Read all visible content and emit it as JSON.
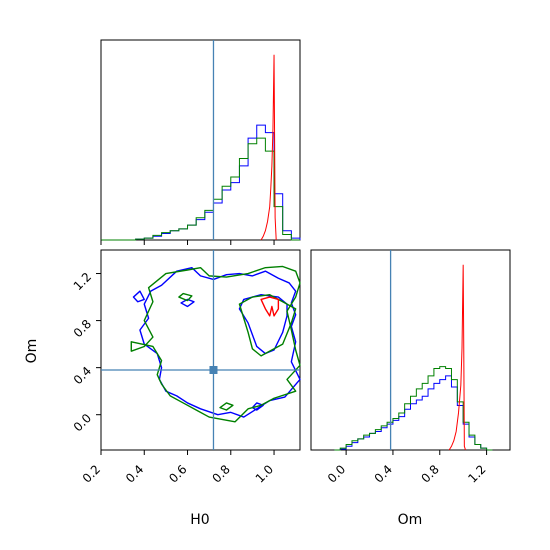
{
  "chart_data": {
    "type": "corner",
    "parameters": [
      "H0",
      "Om"
    ],
    "truth": {
      "H0": 0.72,
      "Om": 0.38
    },
    "truth_color": "#4682b4",
    "colors": {
      "blue": "#0000ff",
      "green": "#008000",
      "red": "#ff0000"
    },
    "axes": {
      "H0": {
        "range": [
          0.2,
          1.12
        ],
        "ticks": [
          0.2,
          0.4,
          0.6,
          0.8,
          1.0
        ],
        "tick_labels": [
          "0.2",
          "0.4",
          "0.6",
          "0.8",
          "1.0"
        ],
        "label": "H0"
      },
      "Om": {
        "range": [
          -0.3,
          1.4
        ],
        "ticks": [
          0.0,
          0.4,
          0.8,
          1.2
        ],
        "tick_labels": [
          "0.0",
          "0.4",
          "0.8",
          "1.2"
        ],
        "label": "Om"
      }
    },
    "histograms": {
      "H0": {
        "edges": [
          0.2,
          0.24,
          0.28,
          0.32,
          0.36,
          0.4,
          0.44,
          0.48,
          0.52,
          0.56,
          0.6,
          0.64,
          0.68,
          0.72,
          0.76,
          0.8,
          0.84,
          0.88,
          0.92,
          0.96,
          1.0,
          1.04,
          1.08,
          1.12
        ],
        "series": [
          {
            "color": "blue",
            "counts": [
              0,
              0,
              0,
              0,
              0.005,
              0.01,
              0.02,
              0.035,
              0.05,
              0.06,
              0.08,
              0.11,
              0.15,
              0.2,
              0.27,
              0.31,
              0.4,
              0.55,
              0.62,
              0.58,
              0.25,
              0.05,
              0.01
            ]
          },
          {
            "color": "green",
            "counts": [
              0,
              0,
              0,
              0,
              0.005,
              0.01,
              0.025,
              0.04,
              0.05,
              0.06,
              0.08,
              0.12,
              0.16,
              0.22,
              0.29,
              0.34,
              0.44,
              0.52,
              0.55,
              0.48,
              0.18,
              0.03,
              0
            ]
          }
        ],
        "peak": {
          "color": "red",
          "x": [
            0.94,
            0.95,
            0.96,
            0.97,
            0.98,
            0.985,
            0.99,
            0.995,
            1.0,
            1.005,
            1.01
          ],
          "y": [
            0.0,
            0.02,
            0.05,
            0.1,
            0.18,
            0.28,
            0.4,
            0.6,
            1.0,
            0.12,
            0.0
          ]
        },
        "ymax": 1.08
      },
      "Om": {
        "edges": [
          -0.1,
          -0.05,
          0.0,
          0.05,
          0.1,
          0.15,
          0.2,
          0.25,
          0.3,
          0.35,
          0.4,
          0.45,
          0.5,
          0.55,
          0.6,
          0.65,
          0.7,
          0.75,
          0.8,
          0.85,
          0.9,
          0.95,
          1.0,
          1.05,
          1.1,
          1.15,
          1.2,
          1.25
        ],
        "series": [
          {
            "color": "blue",
            "counts": [
              0,
              0.005,
              0.02,
              0.04,
              0.06,
              0.07,
              0.09,
              0.1,
              0.12,
              0.14,
              0.16,
              0.18,
              0.22,
              0.25,
              0.27,
              0.29,
              0.33,
              0.36,
              0.38,
              0.4,
              0.34,
              0.24,
              0.14,
              0.07,
              0.03,
              0.01,
              0
            ]
          },
          {
            "color": "green",
            "counts": [
              0,
              0.01,
              0.03,
              0.05,
              0.06,
              0.08,
              0.09,
              0.11,
              0.13,
              0.15,
              0.17,
              0.2,
              0.25,
              0.29,
              0.33,
              0.36,
              0.4,
              0.44,
              0.45,
              0.44,
              0.38,
              0.26,
              0.15,
              0.08,
              0.03,
              0.01,
              0
            ]
          }
        ],
        "peak": {
          "color": "red",
          "x": [
            0.88,
            0.9,
            0.92,
            0.94,
            0.96,
            0.98,
            0.99,
            1.0,
            1.005,
            1.01,
            1.02
          ],
          "y": [
            0.0,
            0.02,
            0.05,
            0.1,
            0.2,
            0.35,
            0.55,
            1.0,
            0.55,
            0.02,
            0.0
          ]
        },
        "ymax": 1.08
      }
    },
    "contours": [
      {
        "color": "blue",
        "paths": [
          [
            [
              0.43,
              1.05
            ],
            [
              0.48,
              1.1
            ],
            [
              0.55,
              1.22
            ],
            [
              0.62,
              1.25
            ],
            [
              0.66,
              1.18
            ],
            [
              0.72,
              1.15
            ],
            [
              0.78,
              1.19
            ],
            [
              0.84,
              1.2
            ],
            [
              0.9,
              1.18
            ],
            [
              0.96,
              1.22
            ],
            [
              1.02,
              1.16
            ],
            [
              1.07,
              1.12
            ],
            [
              1.1,
              1.05
            ],
            [
              1.08,
              0.95
            ],
            [
              1.1,
              0.85
            ],
            [
              1.08,
              0.75
            ],
            [
              1.1,
              0.62
            ],
            [
              1.08,
              0.45
            ],
            [
              1.12,
              0.3
            ],
            [
              1.05,
              0.15
            ],
            [
              0.98,
              0.12
            ],
            [
              0.92,
              0.05
            ],
            [
              0.86,
              -0.02
            ],
            [
              0.8,
              0.02
            ],
            [
              0.74,
              0.0
            ],
            [
              0.66,
              0.05
            ],
            [
              0.6,
              0.1
            ],
            [
              0.55,
              0.16
            ],
            [
              0.5,
              0.2
            ],
            [
              0.47,
              0.3
            ],
            [
              0.48,
              0.4
            ],
            [
              0.46,
              0.52
            ],
            [
              0.4,
              0.6
            ],
            [
              0.38,
              0.72
            ],
            [
              0.42,
              0.82
            ],
            [
              0.4,
              0.94
            ],
            [
              0.43,
              1.05
            ]
          ],
          [
            [
              0.86,
              0.98
            ],
            [
              0.94,
              1.02
            ],
            [
              1.02,
              1.0
            ],
            [
              1.06,
              0.94
            ],
            [
              1.06,
              0.84
            ],
            [
              1.04,
              0.7
            ],
            [
              1.0,
              0.55
            ],
            [
              0.96,
              0.52
            ],
            [
              0.92,
              0.58
            ],
            [
              0.9,
              0.68
            ],
            [
              0.88,
              0.78
            ],
            [
              0.84,
              0.9
            ],
            [
              0.86,
              0.98
            ]
          ],
          [
            [
              0.35,
              1.0
            ],
            [
              0.38,
              1.05
            ],
            [
              0.4,
              0.98
            ],
            [
              0.37,
              0.96
            ],
            [
              0.35,
              1.0
            ]
          ],
          [
            [
              0.57,
              0.95
            ],
            [
              0.6,
              0.98
            ],
            [
              0.63,
              0.96
            ],
            [
              0.6,
              0.92
            ],
            [
              0.57,
              0.95
            ]
          ],
          [
            [
              0.9,
              0.06
            ],
            [
              0.92,
              0.1
            ],
            [
              0.95,
              0.08
            ],
            [
              0.92,
              0.04
            ],
            [
              0.9,
              0.06
            ]
          ]
        ]
      },
      {
        "color": "green",
        "paths": [
          [
            [
              0.4,
              0.8
            ],
            [
              0.44,
              0.96
            ],
            [
              0.42,
              1.08
            ],
            [
              0.5,
              1.2
            ],
            [
              0.6,
              1.23
            ],
            [
              0.66,
              1.25
            ],
            [
              0.7,
              1.18
            ],
            [
              0.78,
              1.17
            ],
            [
              0.88,
              1.2
            ],
            [
              0.96,
              1.25
            ],
            [
              1.04,
              1.26
            ],
            [
              1.1,
              1.22
            ],
            [
              1.12,
              1.12
            ],
            [
              1.1,
              1.0
            ],
            [
              1.06,
              0.88
            ],
            [
              1.08,
              0.72
            ],
            [
              1.1,
              0.55
            ],
            [
              1.12,
              0.42
            ],
            [
              1.06,
              0.3
            ],
            [
              1.1,
              0.2
            ],
            [
              1.0,
              0.14
            ],
            [
              0.94,
              0.08
            ],
            [
              0.88,
              0.05
            ],
            [
              0.82,
              -0.06
            ],
            [
              0.76,
              -0.04
            ],
            [
              0.7,
              -0.02
            ],
            [
              0.64,
              0.04
            ],
            [
              0.58,
              0.1
            ],
            [
              0.52,
              0.16
            ],
            [
              0.48,
              0.26
            ],
            [
              0.46,
              0.34
            ],
            [
              0.48,
              0.46
            ],
            [
              0.44,
              0.58
            ],
            [
              0.34,
              0.62
            ],
            [
              0.34,
              0.54
            ],
            [
              0.4,
              0.58
            ],
            [
              0.44,
              0.66
            ],
            [
              0.4,
              0.8
            ]
          ],
          [
            [
              0.84,
              0.94
            ],
            [
              0.9,
              1.0
            ],
            [
              0.98,
              1.02
            ],
            [
              1.04,
              0.96
            ],
            [
              1.1,
              0.9
            ],
            [
              1.08,
              0.78
            ],
            [
              1.04,
              0.6
            ],
            [
              0.98,
              0.54
            ],
            [
              0.94,
              0.5
            ],
            [
              0.9,
              0.56
            ],
            [
              0.88,
              0.7
            ],
            [
              0.86,
              0.82
            ],
            [
              0.84,
              0.94
            ]
          ],
          [
            [
              0.56,
              1.0
            ],
            [
              0.58,
              1.03
            ],
            [
              0.62,
              1.01
            ],
            [
              0.6,
              0.97
            ],
            [
              0.56,
              1.0
            ]
          ],
          [
            [
              0.75,
              0.06
            ],
            [
              0.78,
              0.1
            ],
            [
              0.81,
              0.08
            ],
            [
              0.78,
              0.04
            ],
            [
              0.75,
              0.06
            ]
          ]
        ]
      },
      {
        "color": "red",
        "paths": [
          [
            [
              0.94,
              0.98
            ],
            [
              0.98,
              1.0
            ],
            [
              1.02,
              0.98
            ],
            [
              1.02,
              0.9
            ],
            [
              1.0,
              0.84
            ],
            [
              0.99,
              0.92
            ],
            [
              0.98,
              0.84
            ],
            [
              0.96,
              0.9
            ],
            [
              0.94,
              0.98
            ]
          ]
        ]
      }
    ]
  }
}
